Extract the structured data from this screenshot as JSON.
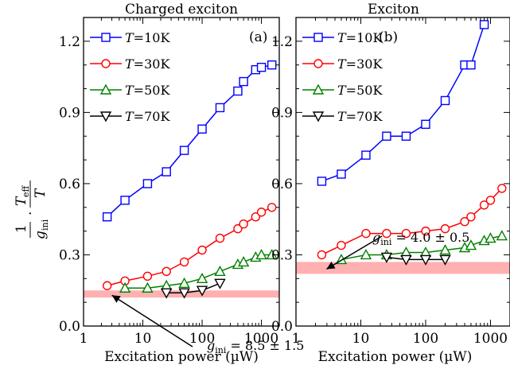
{
  "ylabel": "1/g_ini · T_eff/T",
  "chart_data": [
    {
      "type": "line",
      "title": "Charged exciton",
      "panel_letter": "(a)",
      "xlabel": "Excitation power (µW)",
      "x_scale": "log",
      "xlim": [
        1,
        2000
      ],
      "ylim": [
        0,
        1.3
      ],
      "x_ticks": [
        1,
        10,
        100,
        1000
      ],
      "x_tick_labels": [
        "1",
        "10",
        "100",
        "1000"
      ],
      "y_ticks": [
        0,
        0.3,
        0.6,
        0.9,
        1.2
      ],
      "y_tick_labels": [
        "0.0",
        "0.3",
        "0.6",
        "0.9",
        "1.2"
      ],
      "legend_position": "top-left",
      "series": [
        {
          "name": "T=10K",
          "name_prefix": "T",
          "name_suffix": "=10K",
          "color": "#0000ff",
          "marker": "square",
          "x": [
            2.5,
            5,
            12,
            25,
            50,
            100,
            200,
            400,
            500,
            800,
            1000,
            1500
          ],
          "y": [
            0.46,
            0.53,
            0.6,
            0.65,
            0.74,
            0.83,
            0.92,
            0.99,
            1.03,
            1.08,
            1.09,
            1.1
          ]
        },
        {
          "name": "T=30K",
          "name_prefix": "T",
          "name_suffix": "=30K",
          "color": "#ff0000",
          "marker": "circle",
          "x": [
            2.5,
            5,
            12,
            25,
            50,
            100,
            200,
            400,
            500,
            800,
            1000,
            1500
          ],
          "y": [
            0.17,
            0.19,
            0.21,
            0.23,
            0.27,
            0.32,
            0.37,
            0.41,
            0.43,
            0.46,
            0.48,
            0.5
          ]
        },
        {
          "name": "T=50K",
          "name_prefix": "T",
          "name_suffix": "=50K",
          "color": "#008000",
          "marker": "triangle-up",
          "x": [
            5,
            12,
            25,
            50,
            100,
            200,
            400,
            500,
            800,
            1000,
            1500
          ],
          "y": [
            0.16,
            0.16,
            0.17,
            0.18,
            0.2,
            0.23,
            0.26,
            0.27,
            0.29,
            0.3,
            0.3
          ]
        },
        {
          "name": "T=70K",
          "name_prefix": "T",
          "name_suffix": "=70K",
          "color": "#000000",
          "marker": "triangle-down",
          "x": [
            25,
            50,
            100,
            200
          ],
          "y": [
            0.14,
            0.14,
            0.15,
            0.18
          ]
        }
      ],
      "band": {
        "y1": 0.12,
        "y2": 0.15,
        "color": "#ffb0b0"
      },
      "annotation": {
        "text": "g_ini = 8.5 ± 1.5",
        "lhs": "g",
        "sub": "ini",
        "rhs": " = 8.5 ± 1.5",
        "arrow_to": [
          2.5,
          0.13
        ]
      }
    },
    {
      "type": "line",
      "title": "Exciton",
      "panel_letter": "(b)",
      "xlabel": "Excitation power (µW)",
      "x_scale": "log",
      "xlim": [
        1,
        2000
      ],
      "ylim": [
        0,
        1.3
      ],
      "x_ticks": [
        1,
        10,
        100,
        1000
      ],
      "x_tick_labels": [
        "1",
        "10",
        "100",
        "1000"
      ],
      "y_ticks": [
        0,
        0.3,
        0.6,
        0.9,
        1.2
      ],
      "y_tick_labels": [
        "0.0",
        "0.3",
        "0.6",
        "0.9",
        "1.2"
      ],
      "legend_position": "top-left",
      "series": [
        {
          "name": "T=10K",
          "name_prefix": "T",
          "name_suffix": "=10K",
          "color": "#0000ff",
          "marker": "square",
          "x": [
            2.5,
            5,
            12,
            25,
            50,
            100,
            200,
            400,
            500,
            800
          ],
          "y": [
            0.61,
            0.64,
            0.72,
            0.8,
            0.8,
            0.85,
            0.95,
            1.1,
            1.1,
            1.27
          ]
        },
        {
          "name": "T=30K",
          "name_prefix": "T",
          "name_suffix": "=30K",
          "color": "#ff0000",
          "marker": "circle",
          "x": [
            2.5,
            5,
            12,
            25,
            50,
            100,
            200,
            400,
            500,
            800,
            1000,
            1500
          ],
          "y": [
            0.3,
            0.34,
            0.39,
            0.39,
            0.39,
            0.4,
            0.41,
            0.44,
            0.46,
            0.51,
            0.53,
            0.58
          ]
        },
        {
          "name": "T=50K",
          "name_prefix": "T",
          "name_suffix": "=50K",
          "color": "#008000",
          "marker": "triangle-up",
          "x": [
            5,
            12,
            25,
            50,
            100,
            200,
            400,
            500,
            800,
            1000,
            1500
          ],
          "y": [
            0.28,
            0.3,
            0.3,
            0.31,
            0.31,
            0.32,
            0.33,
            0.34,
            0.36,
            0.37,
            0.38
          ]
        },
        {
          "name": "T=70K",
          "name_prefix": "T",
          "name_suffix": "=70K",
          "color": "#000000",
          "marker": "triangle-down",
          "x": [
            25,
            50,
            100,
            200
          ],
          "y": [
            0.29,
            0.28,
            0.28,
            0.28
          ]
        }
      ],
      "band": {
        "y1": 0.22,
        "y2": 0.27,
        "color": "#ffb0b0"
      },
      "annotation": {
        "text": "g_ini = 4.0 ± 0.5",
        "lhs": "g",
        "sub": "ini",
        "rhs": " = 4.0 ± 0.5",
        "arrow_to": [
          2.5,
          0.24
        ]
      }
    }
  ]
}
